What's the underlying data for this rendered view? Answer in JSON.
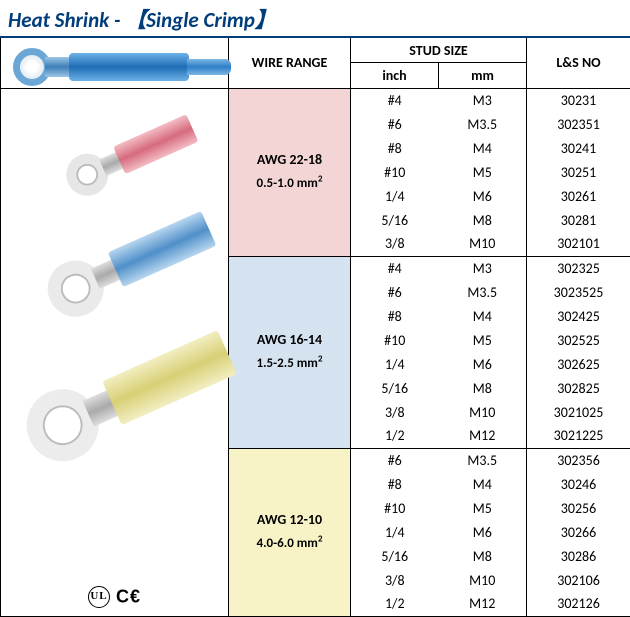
{
  "title": {
    "main": "Heat Shrink -",
    "bracket_open": "【",
    "sub": "Single Crimp",
    "bracket_close": "】"
  },
  "headers": {
    "wire_range": "WIRE RANGE",
    "stud_size": "STUD SIZE",
    "inch": "inch",
    "mm": "mm",
    "lsno": "L&S NO"
  },
  "colors": {
    "border": "#000000",
    "title": "#003d7a",
    "group_bg": [
      "#f3d5d5",
      "#d5e2f0",
      "#f7f3c7"
    ]
  },
  "cert": {
    "ul": "UL",
    "ce": "C€"
  },
  "groups": [
    {
      "awg": "AWG 22-18",
      "mm2_pre": "0.5-1.0 mm",
      "mm2_sup": "2",
      "bg": "#f3d5d5",
      "rows": [
        {
          "inch": "#4",
          "mm": "M3",
          "lsno": "30231"
        },
        {
          "inch": "#6",
          "mm": "M3.5",
          "lsno": "302351"
        },
        {
          "inch": "#8",
          "mm": "M4",
          "lsno": "30241"
        },
        {
          "inch": "#10",
          "mm": "M5",
          "lsno": "30251"
        },
        {
          "inch": "1/4",
          "mm": "M6",
          "lsno": "30261"
        },
        {
          "inch": "5/16",
          "mm": "M8",
          "lsno": "30281"
        },
        {
          "inch": "3/8",
          "mm": "M10",
          "lsno": "302101"
        }
      ]
    },
    {
      "awg": "AWG 16-14",
      "mm2_pre": "1.5-2.5 mm",
      "mm2_sup": "2",
      "bg": "#d5e2f0",
      "rows": [
        {
          "inch": "#4",
          "mm": "M3",
          "lsno": "302325"
        },
        {
          "inch": "#6",
          "mm": "M3.5",
          "lsno": "3023525"
        },
        {
          "inch": "#8",
          "mm": "M4",
          "lsno": "302425"
        },
        {
          "inch": "#10",
          "mm": "M5",
          "lsno": "302525"
        },
        {
          "inch": "1/4",
          "mm": "M6",
          "lsno": "302625"
        },
        {
          "inch": "5/16",
          "mm": "M8",
          "lsno": "302825"
        },
        {
          "inch": "3/8",
          "mm": "M10",
          "lsno": "3021025"
        },
        {
          "inch": "1/2",
          "mm": "M12",
          "lsno": "3021225"
        }
      ]
    },
    {
      "awg": "AWG 12-10",
      "mm2_pre": "4.0-6.0 mm",
      "mm2_sup": "2",
      "bg": "#f7f3c7",
      "rows": [
        {
          "inch": "#6",
          "mm": "M3.5",
          "lsno": "302356"
        },
        {
          "inch": "#8",
          "mm": "M4",
          "lsno": "30246"
        },
        {
          "inch": "#10",
          "mm": "M5",
          "lsno": "30256"
        },
        {
          "inch": "1/4",
          "mm": "M6",
          "lsno": "30266"
        },
        {
          "inch": "5/16",
          "mm": "M8",
          "lsno": "30286"
        },
        {
          "inch": "3/8",
          "mm": "M10",
          "lsno": "302106"
        },
        {
          "inch": "1/2",
          "mm": "M12",
          "lsno": "302126"
        }
      ]
    }
  ]
}
